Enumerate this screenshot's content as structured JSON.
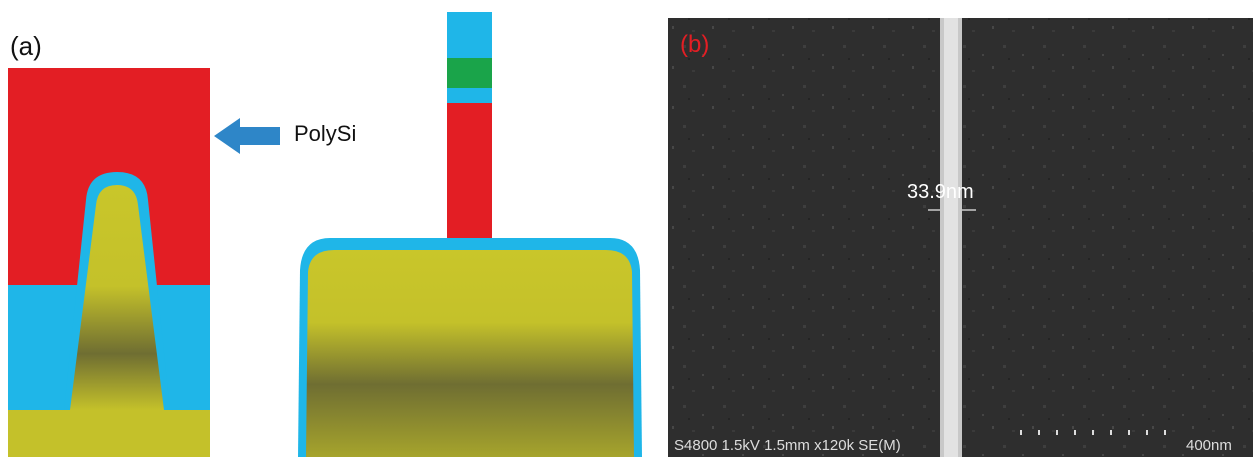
{
  "panel_a": {
    "label": "(a)",
    "arrow_label": "PolySi"
  },
  "panel_b": {
    "label": "(b)",
    "measurement": "33.9nm",
    "info": "S4800 1.5kV 1.5mm x120k SE(M)",
    "scale_bar": "400nm"
  }
}
